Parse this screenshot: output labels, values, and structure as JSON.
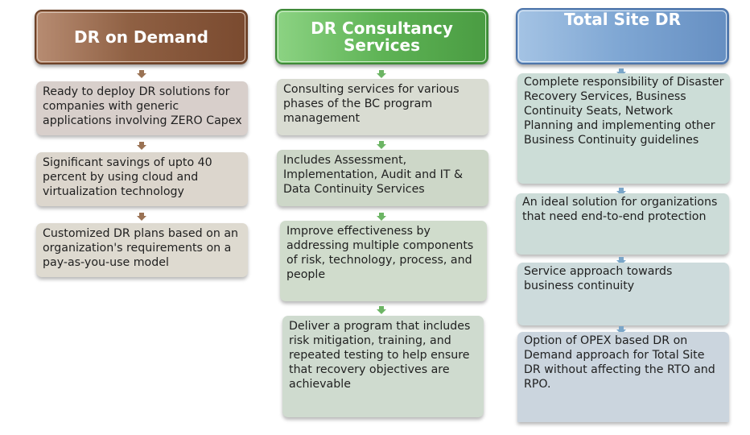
{
  "columns": [
    {
      "title": "DR on Demand",
      "items": [
        "Ready to deploy DR solutions for companies with generic applications involving ZERO Capex",
        "Significant savings of upto 40 percent by using cloud and virtualization technology",
        "Customized DR plans based on an organization's requirements on a pay-as-you-use model"
      ]
    },
    {
      "title": "DR Consultancy\nServices",
      "items": [
        "Consulting services for various phases of the BC program management",
        "Includes Assessment, Implementation, Audit and IT & Data Continuity Services",
        "Improve effectiveness by addressing multiple components of risk, technology, process, and people",
        "Deliver a program that includes risk mitigation, training, and repeated testing to help ensure that recovery objectives are achievable"
      ]
    },
    {
      "title": "Total Site DR",
      "items": [
        "Complete responsibility of Disaster Recovery Services, Business Continuity Seats, Network Planning and implementing other Business Continuity guidelines",
        "An ideal solution for organizations that need end-to-end protection",
        "Service approach towards business continuity",
        "Option of OPEX based DR on Demand approach for Total Site DR without affecting the RTO and RPO."
      ]
    }
  ],
  "colors": {
    "brown": "#8f6043",
    "green": "#5eb355",
    "blue": "#7ea6d3"
  }
}
